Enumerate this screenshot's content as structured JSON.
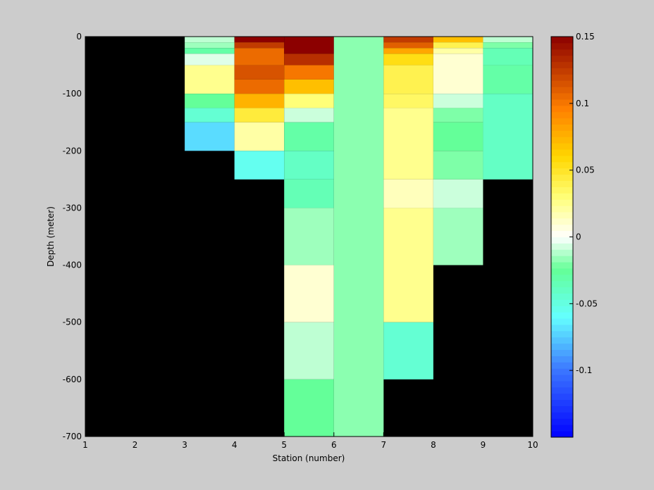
{
  "chart_data": {
    "type": "heatmap",
    "title": "",
    "xlabel": "Station (number)",
    "ylabel": "Depth (meter)",
    "xlim": [
      1,
      10
    ],
    "ylim": [
      -700,
      0
    ],
    "xticks": [
      "1",
      "2",
      "3",
      "4",
      "5",
      "6",
      "7",
      "8",
      "9",
      "10"
    ],
    "yticks": [
      "0",
      "-100",
      "-200",
      "-300",
      "-400",
      "-500",
      "-600",
      "-700"
    ],
    "background_color": "#000000",
    "colorbar": {
      "range": [
        -0.15,
        0.15
      ],
      "ticks": [
        "0.15",
        "0.1",
        "0.05",
        "0",
        "-0.05",
        "-0.1"
      ],
      "colormap": "jet-white-center"
    },
    "cells": [
      {
        "x0": 3,
        "x1": 4,
        "d0": 0,
        "d1": -10,
        "v": -0.01
      },
      {
        "x0": 3,
        "x1": 4,
        "d0": -10,
        "d1": -20,
        "v": -0.015
      },
      {
        "x0": 3,
        "x1": 4,
        "d0": -20,
        "d1": -30,
        "v": -0.03
      },
      {
        "x0": 3,
        "x1": 4,
        "d0": -30,
        "d1": -50,
        "v": -0.005
      },
      {
        "x0": 3,
        "x1": 4,
        "d0": -50,
        "d1": -100,
        "v": 0.025
      },
      {
        "x0": 3,
        "x1": 4,
        "d0": -100,
        "d1": -125,
        "v": -0.025
      },
      {
        "x0": 3,
        "x1": 4,
        "d0": -125,
        "d1": -150,
        "v": -0.045
      },
      {
        "x0": 3,
        "x1": 4,
        "d0": -150,
        "d1": -200,
        "v": -0.07
      },
      {
        "x0": 4,
        "x1": 5,
        "d0": 0,
        "d1": -10,
        "v": 0.15
      },
      {
        "x0": 4,
        "x1": 5,
        "d0": -10,
        "d1": -20,
        "v": 0.125
      },
      {
        "x0": 4,
        "x1": 5,
        "d0": -20,
        "d1": -50,
        "v": 0.105
      },
      {
        "x0": 4,
        "x1": 5,
        "d0": -50,
        "d1": -75,
        "v": 0.115
      },
      {
        "x0": 4,
        "x1": 5,
        "d0": -75,
        "d1": -100,
        "v": 0.105
      },
      {
        "x0": 4,
        "x1": 5,
        "d0": -100,
        "d1": -125,
        "v": 0.075
      },
      {
        "x0": 4,
        "x1": 5,
        "d0": -125,
        "d1": -150,
        "v": 0.045
      },
      {
        "x0": 4,
        "x1": 5,
        "d0": -150,
        "d1": -200,
        "v": 0.02
      },
      {
        "x0": 4,
        "x1": 5,
        "d0": -200,
        "d1": -250,
        "v": -0.055
      },
      {
        "x0": 5,
        "x1": 6,
        "d0": 0,
        "d1": -30,
        "v": 0.15
      },
      {
        "x0": 5,
        "x1": 6,
        "d0": -30,
        "d1": -50,
        "v": 0.13
      },
      {
        "x0": 5,
        "x1": 6,
        "d0": -50,
        "d1": -75,
        "v": 0.1
      },
      {
        "x0": 5,
        "x1": 6,
        "d0": -75,
        "d1": -100,
        "v": 0.07
      },
      {
        "x0": 5,
        "x1": 6,
        "d0": -100,
        "d1": -125,
        "v": 0.03
      },
      {
        "x0": 5,
        "x1": 6,
        "d0": -125,
        "d1": -150,
        "v": -0.008
      },
      {
        "x0": 5,
        "x1": 6,
        "d0": -150,
        "d1": -200,
        "v": -0.03
      },
      {
        "x0": 5,
        "x1": 6,
        "d0": -200,
        "d1": -250,
        "v": -0.04
      },
      {
        "x0": 5,
        "x1": 6,
        "d0": -250,
        "d1": -300,
        "v": -0.035
      },
      {
        "x0": 5,
        "x1": 6,
        "d0": -300,
        "d1": -400,
        "v": -0.015
      },
      {
        "x0": 5,
        "x1": 6,
        "d0": -400,
        "d1": -500,
        "v": 0.01
      },
      {
        "x0": 5,
        "x1": 6,
        "d0": -500,
        "d1": -600,
        "v": -0.01
      },
      {
        "x0": 5,
        "x1": 6,
        "d0": -600,
        "d1": -700,
        "v": -0.025
      },
      {
        "x0": 6,
        "x1": 7,
        "d0": 0,
        "d1": -700,
        "v": -0.018
      },
      {
        "x0": 7,
        "x1": 8,
        "d0": 0,
        "d1": -10,
        "v": 0.125
      },
      {
        "x0": 7,
        "x1": 8,
        "d0": -10,
        "d1": -20,
        "v": 0.11
      },
      {
        "x0": 7,
        "x1": 8,
        "d0": -20,
        "d1": -30,
        "v": 0.08
      },
      {
        "x0": 7,
        "x1": 8,
        "d0": -30,
        "d1": -50,
        "v": 0.055
      },
      {
        "x0": 7,
        "x1": 8,
        "d0": -50,
        "d1": -100,
        "v": 0.04
      },
      {
        "x0": 7,
        "x1": 8,
        "d0": -100,
        "d1": -125,
        "v": 0.035
      },
      {
        "x0": 7,
        "x1": 8,
        "d0": -125,
        "d1": -250,
        "v": 0.025
      },
      {
        "x0": 7,
        "x1": 8,
        "d0": -250,
        "d1": -300,
        "v": 0.015
      },
      {
        "x0": 7,
        "x1": 8,
        "d0": -300,
        "d1": -500,
        "v": 0.025
      },
      {
        "x0": 7,
        "x1": 8,
        "d0": -500,
        "d1": -600,
        "v": -0.045
      },
      {
        "x0": 8,
        "x1": 9,
        "d0": 0,
        "d1": -10,
        "v": 0.07
      },
      {
        "x0": 8,
        "x1": 9,
        "d0": -10,
        "d1": -20,
        "v": 0.04
      },
      {
        "x0": 8,
        "x1": 9,
        "d0": -20,
        "d1": -30,
        "v": 0.02
      },
      {
        "x0": 8,
        "x1": 9,
        "d0": -30,
        "d1": -100,
        "v": 0.01
      },
      {
        "x0": 8,
        "x1": 9,
        "d0": -100,
        "d1": -125,
        "v": -0.008
      },
      {
        "x0": 8,
        "x1": 9,
        "d0": -125,
        "d1": -150,
        "v": -0.02
      },
      {
        "x0": 8,
        "x1": 9,
        "d0": -150,
        "d1": -200,
        "v": -0.025
      },
      {
        "x0": 8,
        "x1": 9,
        "d0": -200,
        "d1": -250,
        "v": -0.02
      },
      {
        "x0": 8,
        "x1": 9,
        "d0": -250,
        "d1": -300,
        "v": -0.008
      },
      {
        "x0": 8,
        "x1": 9,
        "d0": -300,
        "d1": -400,
        "v": -0.015
      },
      {
        "x0": 9,
        "x1": 10,
        "d0": 0,
        "d1": -10,
        "v": -0.01
      },
      {
        "x0": 9,
        "x1": 10,
        "d0": -10,
        "d1": -20,
        "v": -0.02
      },
      {
        "x0": 9,
        "x1": 10,
        "d0": -20,
        "d1": -50,
        "v": -0.035
      },
      {
        "x0": 9,
        "x1": 10,
        "d0": -50,
        "d1": -100,
        "v": -0.03
      },
      {
        "x0": 9,
        "x1": 10,
        "d0": -100,
        "d1": -250,
        "v": -0.04
      }
    ]
  }
}
